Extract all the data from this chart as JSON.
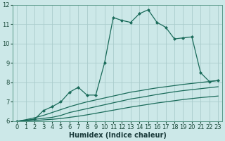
{
  "xlabel": "Humidex (Indice chaleur)",
  "xlim": [
    -0.5,
    23.5
  ],
  "ylim": [
    6,
    12
  ],
  "bg_color": "#cce8e8",
  "grid_color": "#aacccc",
  "line_color": "#1a6b5a",
  "lines": [
    {
      "x": [
        0,
        1,
        2,
        3,
        4,
        5,
        6,
        7,
        8,
        9,
        10,
        11,
        12,
        13,
        14,
        15,
        16,
        17,
        18,
        19,
        20,
        21,
        22,
        23
      ],
      "y": [
        6.0,
        6.05,
        6.1,
        6.15,
        6.2,
        6.3,
        6.45,
        6.55,
        6.65,
        6.75,
        6.85,
        6.95,
        7.05,
        7.15,
        7.22,
        7.3,
        7.38,
        7.45,
        7.52,
        7.58,
        7.63,
        7.68,
        7.73,
        7.78
      ],
      "marker": null,
      "style": "-",
      "lw": 0.9
    },
    {
      "x": [
        0,
        1,
        2,
        3,
        4,
        5,
        6,
        7,
        8,
        9,
        10,
        11,
        12,
        13,
        14,
        15,
        16,
        17,
        18,
        19,
        20,
        21,
        22,
        23
      ],
      "y": [
        6.0,
        6.08,
        6.18,
        6.3,
        6.45,
        6.6,
        6.75,
        6.88,
        7.0,
        7.1,
        7.2,
        7.3,
        7.4,
        7.5,
        7.57,
        7.65,
        7.72,
        7.78,
        7.84,
        7.9,
        7.95,
        8.0,
        8.05,
        8.1
      ],
      "marker": null,
      "style": "-",
      "lw": 0.9
    },
    {
      "x": [
        0,
        2,
        3,
        4,
        5,
        6,
        7,
        8,
        9,
        10,
        11,
        12,
        13,
        14,
        15,
        16,
        17,
        18,
        19,
        20,
        21,
        22,
        23
      ],
      "y": [
        6.0,
        6.1,
        6.55,
        6.75,
        7.0,
        7.5,
        7.75,
        7.35,
        7.35,
        9.0,
        11.35,
        11.2,
        11.1,
        11.55,
        11.75,
        11.1,
        10.85,
        10.25,
        10.3,
        10.35,
        8.5,
        8.05,
        8.1
      ],
      "marker": "D",
      "style": "-",
      "lw": 0.9
    },
    {
      "x": [
        0,
        1,
        2,
        3,
        4,
        5,
        6,
        7,
        8,
        9,
        10,
        11,
        12,
        13,
        14,
        15,
        16,
        17,
        18,
        19,
        20,
        21,
        22,
        23
      ],
      "y": [
        6.0,
        6.02,
        6.04,
        6.07,
        6.1,
        6.14,
        6.2,
        6.26,
        6.33,
        6.41,
        6.49,
        6.57,
        6.65,
        6.73,
        6.8,
        6.87,
        6.94,
        7.0,
        7.06,
        7.12,
        7.17,
        7.22,
        7.26,
        7.3
      ],
      "marker": null,
      "style": "-",
      "lw": 0.9
    }
  ],
  "xticks": [
    0,
    1,
    2,
    3,
    4,
    5,
    6,
    7,
    8,
    9,
    10,
    11,
    12,
    13,
    14,
    15,
    16,
    17,
    18,
    19,
    20,
    21,
    22,
    23
  ],
  "yticks": [
    6,
    7,
    8,
    9,
    10,
    11,
    12
  ],
  "tick_fontsize": 6,
  "xlabel_fontsize": 7
}
